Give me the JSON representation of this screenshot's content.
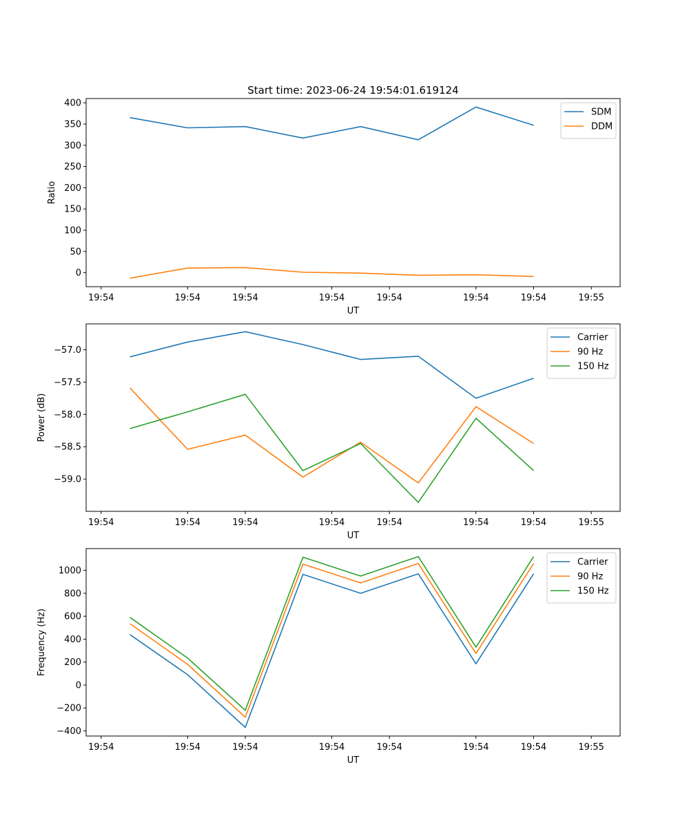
{
  "figure": {
    "title": "Start time: 2023-06-24 19:54:01.619124"
  },
  "colors": {
    "blue": "#1f77b4",
    "orange": "#ff7f0e",
    "green": "#2ca02c"
  },
  "chart_data": [
    {
      "type": "line",
      "ylabel": "Ratio",
      "xlabel": "UT",
      "x": [
        1,
        2,
        3,
        4,
        5,
        6,
        7,
        8
      ],
      "xlim": [
        0.24,
        9.5
      ],
      "ylim": [
        -33,
        410
      ],
      "yticks": [
        0,
        50,
        100,
        150,
        200,
        250,
        300,
        350,
        400
      ],
      "xticks": [
        0.5,
        2.0,
        3.0,
        4.5,
        5.5,
        7.0,
        8.0,
        9.0
      ],
      "xtick_labels": [
        "19:54",
        "19:54",
        "19:54",
        "19:54",
        "19:54",
        "19:54",
        "19:54",
        "19:55"
      ],
      "legend": "top-right",
      "series": [
        {
          "name": "SDM",
          "color": "#1f77b4",
          "values": [
            365,
            341,
            344,
            317,
            344,
            313,
            390,
            347
          ]
        },
        {
          "name": "DDM",
          "color": "#ff7f0e",
          "values": [
            -13,
            11,
            12,
            1,
            -1,
            -6,
            -5,
            -9
          ]
        }
      ]
    },
    {
      "type": "line",
      "ylabel": "Power (dB)",
      "xlabel": "UT",
      "x": [
        1,
        2,
        3,
        4,
        5,
        6,
        7,
        8
      ],
      "xlim": [
        0.24,
        9.5
      ],
      "ylim": [
        -59.5,
        -56.6
      ],
      "yticks": [
        -59.0,
        -58.5,
        -58.0,
        -57.5,
        -57.0
      ],
      "ytick_labels": [
        "−59.0",
        "−58.5",
        "−58.0",
        "−57.5",
        "−57.0"
      ],
      "xticks": [
        0.5,
        2.0,
        3.0,
        4.5,
        5.5,
        7.0,
        8.0,
        9.0
      ],
      "xtick_labels": [
        "19:54",
        "19:54",
        "19:54",
        "19:54",
        "19:54",
        "19:54",
        "19:54",
        "19:55"
      ],
      "legend": "top-right",
      "series": [
        {
          "name": "Carrier",
          "color": "#1f77b4",
          "values": [
            -57.11,
            -56.88,
            -56.72,
            -56.92,
            -57.15,
            -57.1,
            -57.75,
            -57.44
          ]
        },
        {
          "name": "90 Hz",
          "color": "#ff7f0e",
          "values": [
            -57.59,
            -58.54,
            -58.32,
            -58.97,
            -58.43,
            -59.06,
            -57.88,
            -58.45
          ]
        },
        {
          "name": "150 Hz",
          "color": "#2ca02c",
          "values": [
            -58.22,
            -57.96,
            -57.69,
            -58.87,
            -58.45,
            -59.36,
            -58.06,
            -58.87
          ]
        }
      ]
    },
    {
      "type": "line",
      "ylabel": "Frequency (Hz)",
      "xlabel": "UT",
      "x": [
        1,
        2,
        3,
        4,
        5,
        6,
        7,
        8
      ],
      "xlim": [
        0.24,
        9.5
      ],
      "ylim": [
        -445,
        1190
      ],
      "yticks": [
        -400,
        -200,
        0,
        200,
        400,
        600,
        800,
        1000
      ],
      "ytick_labels": [
        "−400",
        "−200",
        "0",
        "200",
        "400",
        "600",
        "800",
        "1000"
      ],
      "xticks": [
        0.5,
        2.0,
        3.0,
        4.5,
        5.5,
        7.0,
        8.0,
        9.0
      ],
      "xtick_labels": [
        "19:54",
        "19:54",
        "19:54",
        "19:54",
        "19:54",
        "19:54",
        "19:54",
        "19:55"
      ],
      "legend": "top-right",
      "series": [
        {
          "name": "Carrier",
          "color": "#1f77b4",
          "values": [
            440,
            90,
            -370,
            965,
            800,
            970,
            185,
            970
          ]
        },
        {
          "name": "90 Hz",
          "color": "#ff7f0e",
          "values": [
            535,
            180,
            -280,
            1055,
            890,
            1060,
            275,
            1060
          ]
        },
        {
          "name": "150 Hz",
          "color": "#2ca02c",
          "values": [
            590,
            235,
            -220,
            1115,
            950,
            1120,
            330,
            1120
          ]
        }
      ]
    }
  ]
}
